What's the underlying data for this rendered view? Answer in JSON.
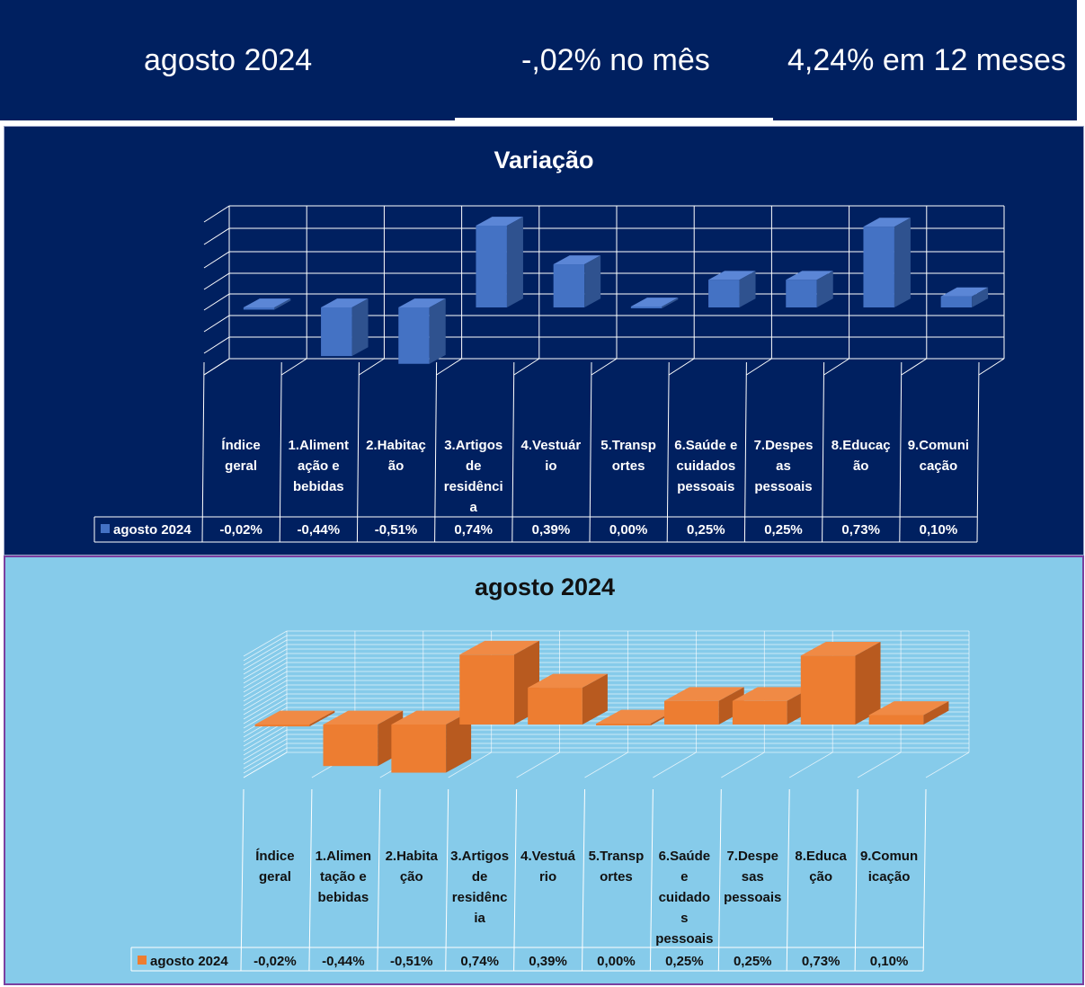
{
  "banner": {
    "period": "agosto 2024",
    "monthly": "-,02% no mês",
    "annual": "4,24% em 12 meses"
  },
  "chart_data": [
    {
      "type": "bar",
      "title": "Variação",
      "categories": [
        "Índice geral",
        "1.Alimentação e bebidas",
        "2.Habitação",
        "3.Artigos de residência",
        "4.Vestuário",
        "5.Transportes",
        "6.Saúde e cuidados pessoais",
        "7.Despesas pessoais",
        "8.Educação",
        "9.Comunicação"
      ],
      "category_lines": [
        [
          "Índice",
          "geral"
        ],
        [
          "1.Aliment",
          "ação e",
          "bebidas"
        ],
        [
          "2.Habitaç",
          "ão"
        ],
        [
          "3.Artigos",
          "de",
          "residênci",
          "a"
        ],
        [
          "4.Vestuár",
          "io"
        ],
        [
          "5.Transp",
          "ortes"
        ],
        [
          "6.Saúde e",
          "cuidados",
          "pessoais"
        ],
        [
          "7.Despes",
          "as",
          "pessoais"
        ],
        [
          "8.Educaç",
          "ão"
        ],
        [
          "9.Comuni",
          "cação"
        ]
      ],
      "series": [
        {
          "name": "agosto 2024",
          "values": [
            -0.02,
            -0.44,
            -0.51,
            0.74,
            0.39,
            0.0,
            0.25,
            0.25,
            0.73,
            0.1
          ]
        }
      ],
      "data_labels": [
        "-0,02%",
        "-0,44%",
        "-0,51%",
        "0,74%",
        "0,39%",
        "0,00%",
        "0,25%",
        "0,25%",
        "0,73%",
        "0,10%"
      ],
      "legend": "data table",
      "grid": true,
      "three_d": true,
      "colors": {
        "bar": "#4472c4",
        "bar_top": "#5b86d6",
        "bar_side": "#2f528f",
        "background": "#002060",
        "grid": "#ffffff",
        "text": "#ffffff"
      }
    },
    {
      "type": "bar",
      "title": "agosto 2024",
      "categories": [
        "Índice geral",
        "1.Alimentação e bebidas",
        "2.Habitação",
        "3.Artigos de residência",
        "4.Vestuário",
        "5.Transportes",
        "6.Saúde e cuidados pessoais",
        "7.Despesas pessoais",
        "8.Educação",
        "9.Comunicação"
      ],
      "category_lines": [
        [
          "Índice",
          "geral"
        ],
        [
          "1.Alimen",
          "tação e",
          "bebidas"
        ],
        [
          "2.Habita",
          "ção"
        ],
        [
          "3.Artigos",
          "de",
          "residênc",
          "ia"
        ],
        [
          "4.Vestuá",
          "rio"
        ],
        [
          "5.Transp",
          "ortes"
        ],
        [
          "6.Saúde",
          "e",
          "cuidado",
          "s",
          "pessoais"
        ],
        [
          "7.Despe",
          "sas",
          "pessoais"
        ],
        [
          "8.Educa",
          "ção"
        ],
        [
          "9.Comun",
          "icação"
        ]
      ],
      "series": [
        {
          "name": "agosto 2024",
          "values": [
            -0.02,
            -0.44,
            -0.51,
            0.74,
            0.39,
            0.0,
            0.25,
            0.25,
            0.73,
            0.1
          ]
        }
      ],
      "data_labels": [
        "-0,02%",
        "-0,44%",
        "-0,51%",
        "0,74%",
        "0,39%",
        "0,00%",
        "0,25%",
        "0,25%",
        "0,73%",
        "0,10%"
      ],
      "legend": "data table",
      "grid": true,
      "three_d": true,
      "colors": {
        "bar": "#ed7d31",
        "bar_top": "#f08a45",
        "bar_side": "#b85a1f",
        "background": "#86cbea",
        "grid": "#ffffff",
        "text": "#111111"
      }
    }
  ]
}
